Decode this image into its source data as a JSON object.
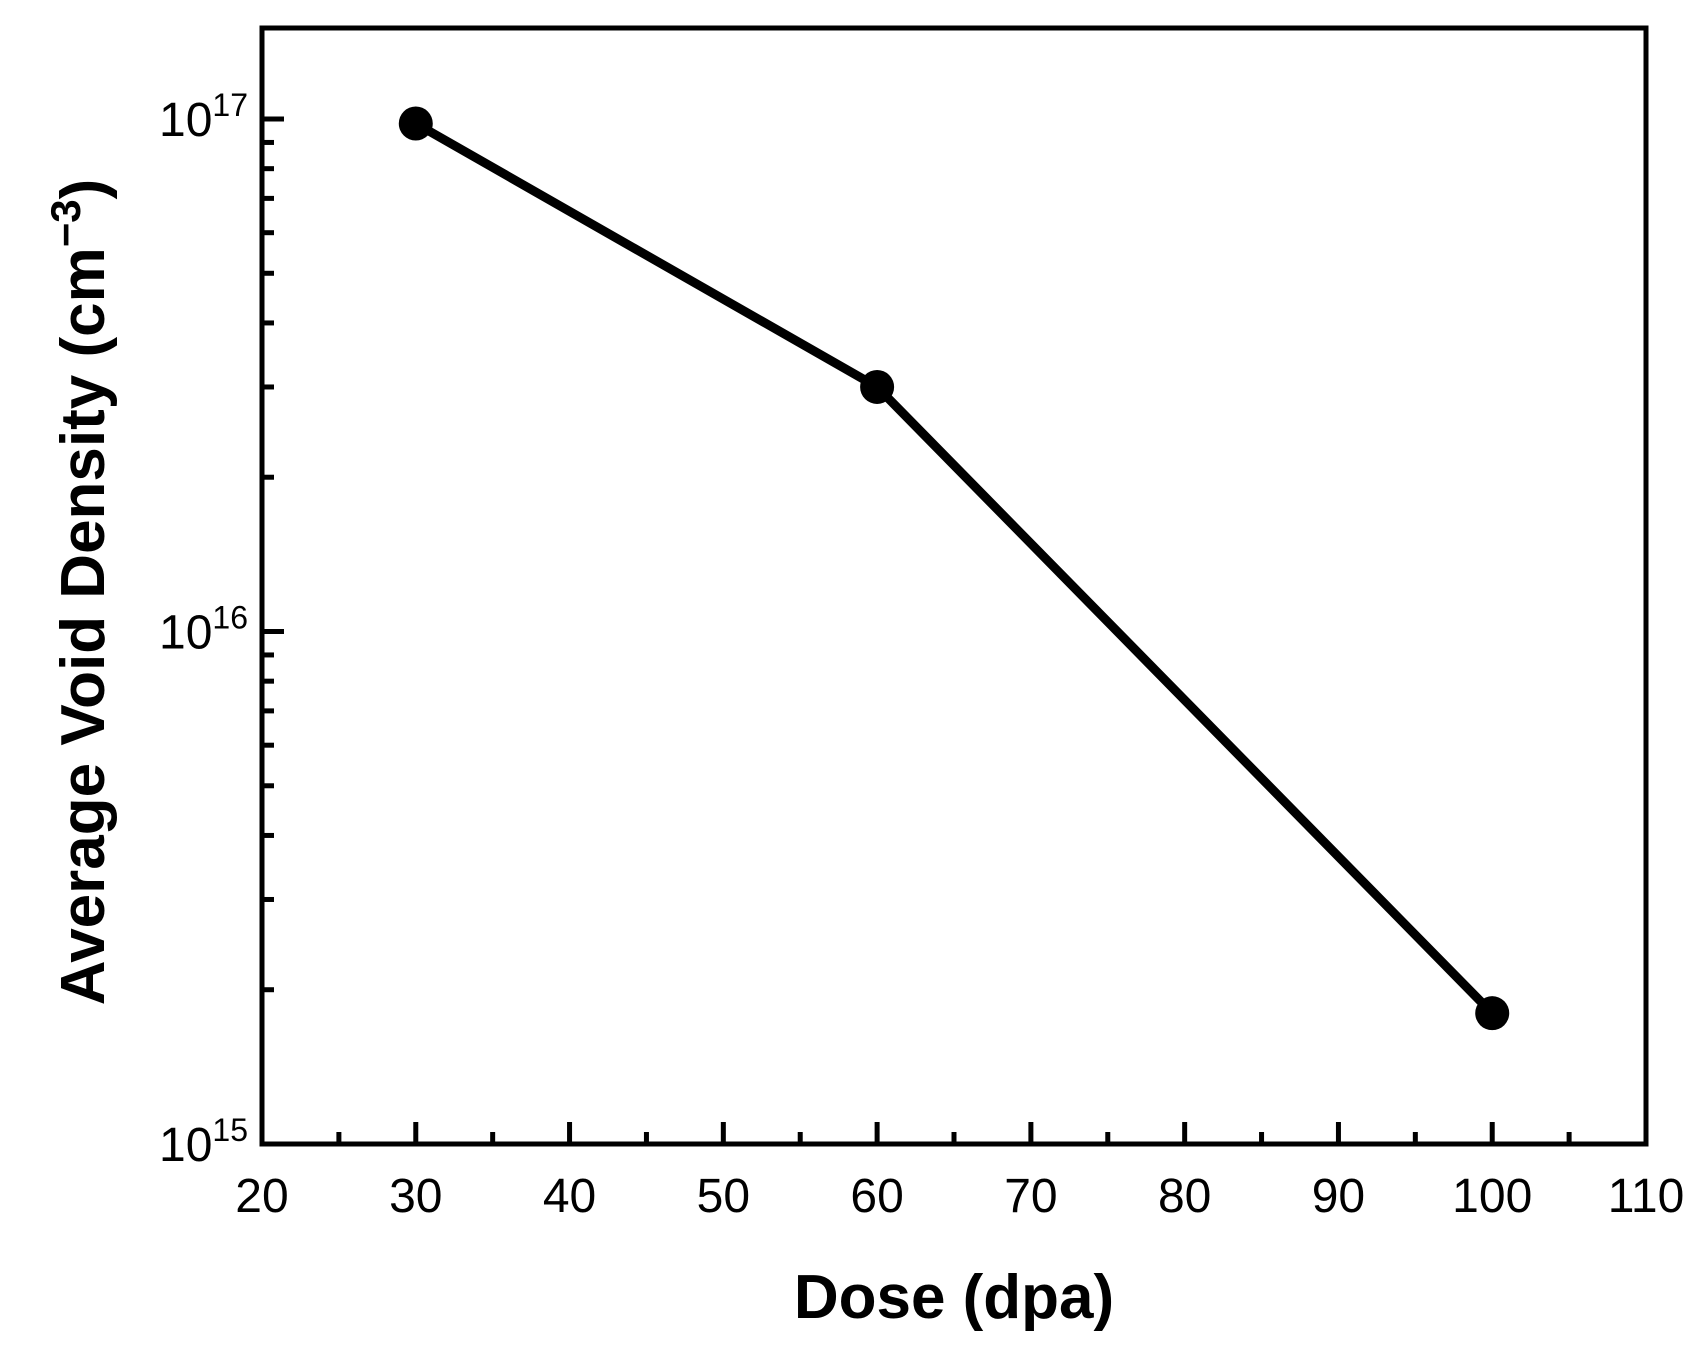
{
  "chart_data": {
    "type": "line",
    "title": "",
    "xlabel": "Dose (dpa)",
    "ylabel_parts": {
      "text": "Average Void Density (cm",
      "superscript": "−3",
      "close": ")"
    },
    "xlim": [
      20,
      110
    ],
    "ylim": [
      1000000000000000.0,
      1e+17
    ],
    "yscale": "log",
    "x_ticks": [
      20,
      30,
      40,
      50,
      60,
      70,
      80,
      90,
      100,
      110
    ],
    "y_ticks": [
      {
        "value": 1000000000000000.0,
        "base": "10",
        "exponent": "15"
      },
      {
        "value": 1e+16,
        "base": "10",
        "exponent": "16"
      },
      {
        "value": 1e+17,
        "base": "10",
        "exponent": "17"
      }
    ],
    "grid": false,
    "series": [
      {
        "x": [
          30,
          60,
          100
        ],
        "y": [
          9.8e+16,
          3e+16,
          1800000000000000.0
        ],
        "color": "#000000",
        "marker": "circle"
      }
    ]
  }
}
